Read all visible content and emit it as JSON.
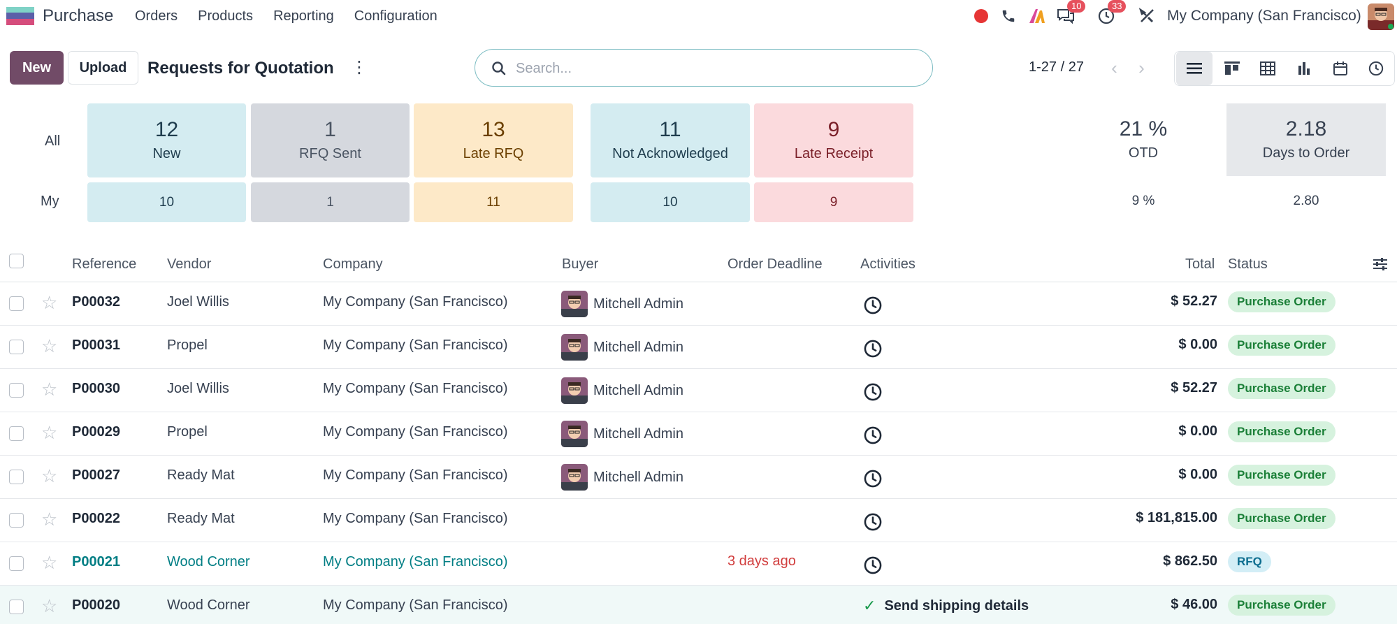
{
  "app": {
    "name": "Purchase",
    "menu": [
      "Orders",
      "Products",
      "Reporting",
      "Configuration"
    ],
    "company": "My Company (San Francisco)",
    "badges": {
      "messages": "10",
      "activities": "33"
    },
    "colors": {
      "brand": "#714b67",
      "accent": "#017e84",
      "danger": "#d13d3d"
    }
  },
  "control": {
    "new_label": "New",
    "upload_label": "Upload",
    "title": "Requests for Quotation",
    "search_placeholder": "Search...",
    "pager": "1-27 / 27"
  },
  "dashboard": {
    "row_all": "All",
    "row_my": "My",
    "tiles": [
      {
        "all": "12",
        "label": "New",
        "my": "10"
      },
      {
        "all": "1",
        "label": "RFQ Sent",
        "my": "1"
      },
      {
        "all": "13",
        "label": "Late RFQ",
        "my": "11"
      },
      {
        "all": "11",
        "label": "Not Acknowledged",
        "my": "10"
      },
      {
        "all": "9",
        "label": "Late Receipt",
        "my": "9"
      }
    ],
    "stats": [
      {
        "all": "21 %",
        "label": "OTD",
        "my": "9 %"
      },
      {
        "all": "2.18",
        "label": "Days to Order",
        "my": "2.80"
      }
    ]
  },
  "list": {
    "headers": {
      "reference": "Reference",
      "vendor": "Vendor",
      "company": "Company",
      "buyer": "Buyer",
      "deadline": "Order Deadline",
      "activities": "Activities",
      "total": "Total",
      "status": "Status"
    },
    "rows": [
      {
        "ref": "P00032",
        "vendor": "Joel Willis",
        "company": "My Company (San Francisco)",
        "buyer": "Mitchell Admin",
        "deadline": "",
        "activity": "",
        "total": "$ 52.27",
        "status": "Purchase Order"
      },
      {
        "ref": "P00031",
        "vendor": "Propel",
        "company": "My Company (San Francisco)",
        "buyer": "Mitchell Admin",
        "deadline": "",
        "activity": "",
        "total": "$ 0.00",
        "status": "Purchase Order"
      },
      {
        "ref": "P00030",
        "vendor": "Joel Willis",
        "company": "My Company (San Francisco)",
        "buyer": "Mitchell Admin",
        "deadline": "",
        "activity": "",
        "total": "$ 52.27",
        "status": "Purchase Order"
      },
      {
        "ref": "P00029",
        "vendor": "Propel",
        "company": "My Company (San Francisco)",
        "buyer": "Mitchell Admin",
        "deadline": "",
        "activity": "",
        "total": "$ 0.00",
        "status": "Purchase Order"
      },
      {
        "ref": "P00027",
        "vendor": "Ready Mat",
        "company": "My Company (San Francisco)",
        "buyer": "Mitchell Admin",
        "deadline": "",
        "activity": "",
        "total": "$ 0.00",
        "status": "Purchase Order"
      },
      {
        "ref": "P00022",
        "vendor": "Ready Mat",
        "company": "My Company (San Francisco)",
        "buyer": "",
        "deadline": "",
        "activity": "",
        "total": "$ 181,815.00",
        "status": "Purchase Order"
      },
      {
        "ref": "P00021",
        "vendor": "Wood Corner",
        "company": "My Company (San Francisco)",
        "buyer": "",
        "deadline": "3 days ago",
        "activity": "",
        "total": "$ 862.50",
        "status": "RFQ"
      },
      {
        "ref": "P00020",
        "vendor": "Wood Corner",
        "company": "My Company (San Francisco)",
        "buyer": "",
        "deadline": "",
        "activity": "Send shipping details",
        "total": "$ 46.00",
        "status": "Purchase Order"
      }
    ]
  }
}
